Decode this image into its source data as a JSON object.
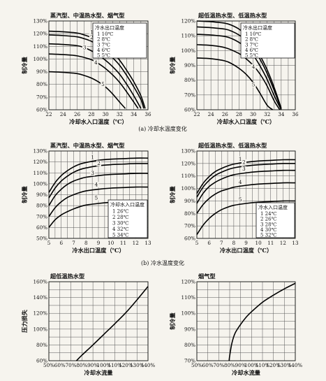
{
  "chart_data": [
    {
      "id": "p1",
      "type": "line",
      "title": "蒸汽型、中温热水型、烟气型",
      "xlabel": "冷却水入口温度（℃）",
      "ylabel": "制冷量",
      "xlim": [
        22,
        36
      ],
      "ylim": [
        60,
        130
      ],
      "xticks": [
        "22",
        "24",
        "26",
        "28",
        "30",
        "32",
        "34",
        "36"
      ],
      "yticks": [
        "60%",
        "70%",
        "80%",
        "90%",
        "100%",
        "110%",
        "120%",
        "130%"
      ],
      "grid": true,
      "legend": {
        "title": "冷水出口温度",
        "position": "top-right",
        "items": [
          "1  10℃",
          "2  8℃",
          "3  7℃",
          "4  6℃",
          "5  5℃"
        ]
      },
      "series": [
        {
          "name": "1",
          "x": [
            22,
            24,
            26,
            27,
            28,
            29,
            30,
            31,
            32,
            33,
            34,
            35,
            35.6
          ],
          "y": [
            122,
            121.5,
            120.5,
            119,
            117,
            114,
            110,
            105,
            99,
            91,
            82,
            71,
            61
          ]
        },
        {
          "name": "2",
          "x": [
            22,
            24,
            26,
            27,
            28,
            29,
            30,
            31,
            32,
            33,
            34,
            35,
            35.4
          ],
          "y": [
            119,
            118.5,
            117.5,
            116,
            114,
            110.5,
            106,
            101,
            95,
            87,
            78,
            68,
            61
          ]
        },
        {
          "name": "3",
          "x": [
            22,
            24,
            26,
            27,
            28,
            29,
            30,
            31,
            32,
            33,
            34,
            35
          ],
          "y": [
            112,
            111.5,
            110.5,
            109,
            106.5,
            103,
            99,
            94,
            88,
            80,
            71,
            61
          ]
        },
        {
          "name": "4",
          "x": [
            22,
            24,
            26,
            28,
            29,
            30,
            31,
            32,
            33,
            34,
            34.6
          ],
          "y": [
            104,
            103.5,
            102.5,
            99.5,
            96.5,
            92.5,
            87.5,
            81.5,
            74,
            66,
            61
          ]
        },
        {
          "name": "5",
          "x": [
            22,
            24,
            26,
            27,
            28,
            29,
            30,
            31,
            32,
            32.8
          ],
          "y": [
            90,
            89.5,
            88.5,
            87,
            85,
            82,
            78,
            72.5,
            66,
            61
          ]
        }
      ],
      "curve_labels": [
        "1",
        "2",
        "3",
        "4",
        "5"
      ]
    },
    {
      "id": "p2",
      "type": "line",
      "title": "超低温热水型、低温热水型",
      "xlabel": "冷却水入口温度（℃）",
      "ylabel": "制冷量",
      "xlim": [
        22,
        36
      ],
      "ylim": [
        60,
        120
      ],
      "xticks": [
        "22",
        "24",
        "26",
        "28",
        "30",
        "32",
        "34",
        "36"
      ],
      "yticks": [
        "60%",
        "70%",
        "80%",
        "90%",
        "100%",
        "110%",
        "120%"
      ],
      "grid": true,
      "legend": {
        "title": "冷水出口温度",
        "position": "top-right",
        "items": [
          "1  10℃",
          "2  8℃",
          "3  7℃",
          "4  6℃",
          "5  5℃"
        ]
      },
      "series": [
        {
          "name": "1",
          "x": [
            22,
            24,
            26,
            27,
            28,
            29,
            30,
            31,
            32,
            33,
            34
          ],
          "y": [
            120,
            119.5,
            118.5,
            117,
            114.5,
            110.5,
            104.5,
            96.5,
            87,
            75,
            61
          ]
        },
        {
          "name": "2",
          "x": [
            22,
            24,
            26,
            27,
            28,
            29,
            30,
            31,
            32,
            33,
            34
          ],
          "y": [
            116,
            115.5,
            114.5,
            113,
            110.5,
            107,
            101.5,
            94,
            84.5,
            73,
            60.5
          ]
        },
        {
          "name": "3",
          "x": [
            22,
            24,
            26,
            27,
            28,
            29,
            30,
            31,
            32,
            33,
            34
          ],
          "y": [
            111,
            110.5,
            109.5,
            108,
            105.5,
            102,
            97,
            89.5,
            80.5,
            69.5,
            60
          ]
        },
        {
          "name": "4",
          "x": [
            22,
            24,
            26,
            28,
            29,
            30,
            31,
            32,
            33,
            33.8
          ],
          "y": [
            104,
            103.5,
            102,
            98,
            94.5,
            90,
            84,
            76,
            66,
            60
          ]
        },
        {
          "name": "5",
          "x": [
            22,
            24,
            26,
            27,
            28,
            29,
            30,
            31,
            32,
            32.8
          ],
          "y": [
            95,
            94.5,
            93,
            91,
            88,
            84,
            78.5,
            71,
            63,
            60
          ]
        }
      ],
      "curve_labels": [
        "1",
        "2",
        "3",
        "4",
        "5"
      ]
    },
    {
      "id": "p3",
      "type": "line",
      "title": "蒸汽型、中温热水型、烟气型",
      "xlabel": "冷水出口温度（℃）",
      "ylabel": "制冷量",
      "xlim": [
        5,
        13
      ],
      "ylim": [
        50,
        130
      ],
      "xticks": [
        "5",
        "6",
        "7",
        "8",
        "9",
        "10",
        "11",
        "12",
        "13"
      ],
      "yticks": [
        "50%",
        "60%",
        "70%",
        "80%",
        "90%",
        "100%",
        "110%",
        "120%",
        "130%"
      ],
      "grid": true,
      "legend": {
        "title": "冷却水入口温度",
        "position": "bottom-right",
        "items": [
          "1  26℃",
          "2  28℃",
          "3  30℃",
          "4  32℃",
          "5  34℃"
        ]
      },
      "series": [
        {
          "name": "1",
          "x": [
            5,
            5.5,
            6,
            6.5,
            7,
            7.5,
            8,
            9,
            10,
            11,
            12,
            13
          ],
          "y": [
            92,
            101,
            107.5,
            112,
            115.5,
            118,
            119.5,
            121.5,
            122.5,
            123,
            123.5,
            123.5
          ]
        },
        {
          "name": "2",
          "x": [
            5,
            5.5,
            6,
            6.5,
            7,
            7.5,
            8,
            9,
            10,
            11,
            12,
            13
          ],
          "y": [
            87,
            96,
            102.5,
            107,
            110.5,
            113,
            114.5,
            116.5,
            117.5,
            118,
            118.5,
            118.5
          ]
        },
        {
          "name": "3",
          "x": [
            5,
            5.5,
            6,
            6.5,
            7,
            7.5,
            8,
            9,
            10,
            11,
            12,
            13
          ],
          "y": [
            80,
            89,
            95,
            99.5,
            102.5,
            104.5,
            106,
            107.5,
            108.5,
            109,
            109.5,
            109.5
          ]
        },
        {
          "name": "4",
          "x": [
            5,
            5.5,
            6,
            6.5,
            7,
            7.5,
            8,
            9,
            10,
            11,
            12,
            13
          ],
          "y": [
            70,
            78,
            83.5,
            87.5,
            90,
            92,
            93.5,
            95,
            96,
            96.5,
            97,
            97
          ]
        },
        {
          "name": "5",
          "x": [
            5,
            5.5,
            6,
            6.5,
            7,
            7.5,
            8,
            9,
            10,
            11,
            12
          ],
          "y": [
            60,
            67,
            71.5,
            74.5,
            77,
            79,
            80.5,
            82,
            83,
            83.5,
            84
          ]
        }
      ],
      "curve_labels": [
        "1",
        "2",
        "3",
        "4",
        "5"
      ]
    },
    {
      "id": "p4",
      "type": "line",
      "title": "超低温热水型、低温热水型",
      "xlabel": "冷水出口温度（℃）",
      "ylabel": "制冷量",
      "xlim": [
        5,
        13
      ],
      "ylim": [
        60,
        130
      ],
      "xticks": [
        "5",
        "6",
        "7",
        "8",
        "9",
        "10",
        "11",
        "12",
        "13"
      ],
      "yticks": [
        "60%",
        "70%",
        "80%",
        "90%",
        "100%",
        "110%",
        "120%",
        "130%"
      ],
      "grid": true,
      "legend": {
        "title": "冷水入口温度",
        "position": "bottom-right",
        "items": [
          "1  24℃",
          "2  26℃",
          "3  28℃",
          "4  30℃",
          "5  32℃"
        ]
      },
      "series": [
        {
          "name": "1",
          "x": [
            5,
            5.5,
            6,
            6.5,
            7,
            7.5,
            8,
            9,
            10,
            11,
            12,
            13
          ],
          "y": [
            96,
            104,
            109.5,
            113.5,
            116,
            118,
            119.5,
            121,
            122,
            122.5,
            123,
            123
          ]
        },
        {
          "name": "2",
          "x": [
            5,
            5.5,
            6,
            6.5,
            7,
            7.5,
            8,
            9,
            10,
            11,
            12,
            13
          ],
          "y": [
            93,
            101,
            106.5,
            110.5,
            113,
            115,
            116.5,
            118,
            119,
            119.5,
            120,
            120
          ]
        },
        {
          "name": "3",
          "x": [
            5,
            5.5,
            6,
            6.5,
            7,
            7.5,
            8,
            9,
            10,
            11,
            12,
            13
          ],
          "y": [
            88,
            96,
            101.5,
            105,
            107.5,
            109.5,
            111,
            112.5,
            113.5,
            114,
            114.5,
            114.5
          ]
        },
        {
          "name": "4",
          "x": [
            5,
            5.5,
            6,
            6.5,
            7,
            7.5,
            8,
            9,
            10,
            11,
            12,
            13
          ],
          "y": [
            80,
            87,
            92,
            95.5,
            98,
            99.5,
            101,
            102.5,
            103.5,
            104,
            104.5,
            104.5
          ]
        },
        {
          "name": "5",
          "x": [
            5,
            5.5,
            6,
            6.5,
            7,
            7.5,
            8,
            9,
            10,
            11,
            12,
            13
          ],
          "y": [
            63,
            70.5,
            76,
            80,
            83,
            85,
            86.5,
            88,
            89,
            89.5,
            90,
            90
          ]
        }
      ],
      "curve_labels": [
        "1",
        "2",
        "3",
        "4",
        "5"
      ]
    },
    {
      "id": "p5",
      "type": "line",
      "title": "超低温热水型",
      "xlabel": "冷却水流量",
      "ylabel": "压力损失",
      "xlim": [
        50,
        140
      ],
      "ylim": [
        60,
        160
      ],
      "xticks": [
        "50%",
        "60%",
        "70%",
        "80%",
        "90%",
        "100%",
        "110%",
        "120%",
        "130%",
        "140%"
      ],
      "yticks": [
        "60%",
        "80%",
        "100%",
        "120%",
        "140%",
        "160%"
      ],
      "grid": true,
      "series": [
        {
          "name": "",
          "x": [
            75,
            80,
            90,
            100,
            110,
            120,
            130,
            140
          ],
          "y": [
            60,
            67,
            80,
            93.5,
            107,
            121,
            137,
            154
          ]
        }
      ]
    },
    {
      "id": "p6",
      "type": "line",
      "title": "烟气型",
      "xlabel": "冷却水流量",
      "ylabel": "制冷量",
      "xlim": [
        50,
        140
      ],
      "ylim": [
        70,
        120
      ],
      "xticks": [
        "50%",
        "60%",
        "70%",
        "80%",
        "90%",
        "100%",
        "110%",
        "120%",
        "130%",
        "140%"
      ],
      "yticks": [
        "70%",
        "80%",
        "90%",
        "100%",
        "110%",
        "120%"
      ],
      "grid": true,
      "series": [
        {
          "name": "",
          "x": [
            79.5,
            80,
            82,
            85,
            90,
            95,
            100,
            110,
            120,
            130,
            140
          ],
          "y": [
            70,
            73,
            81,
            87.5,
            93,
            97.5,
            101,
            107,
            111.5,
            115.5,
            119
          ]
        }
      ]
    }
  ],
  "captions": {
    "a": "(a) 冷却水温度变化",
    "b": "(b) 冷水温度变化"
  }
}
